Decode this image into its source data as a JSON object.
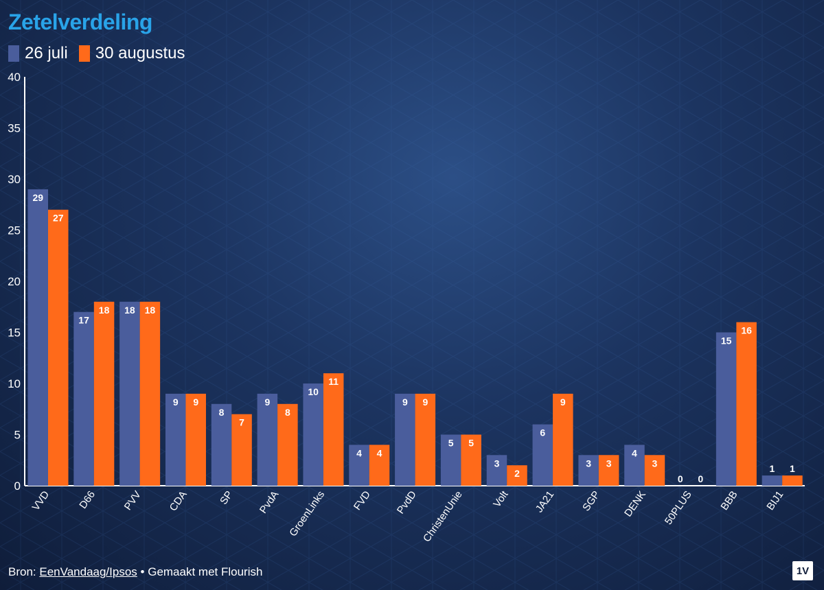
{
  "title": "Zetelverdeling",
  "colors": {
    "series1": "#4a5d9c",
    "series2": "#ff6a1a",
    "accent": "#29a3e8"
  },
  "chart_data": {
    "type": "bar",
    "title": "Zetelverdeling",
    "xlabel": "",
    "ylabel": "",
    "ylim": [
      0,
      40
    ],
    "yticks": [
      "0",
      "5",
      "10",
      "15",
      "20",
      "25",
      "30",
      "35",
      "40"
    ],
    "legend_position": "top-left",
    "grid": false,
    "categories": [
      "VVD",
      "D66",
      "PVV",
      "CDA",
      "SP",
      "PvdA",
      "GroenLinks",
      "FVD",
      "PvdD",
      "ChristenUnie",
      "Volt",
      "JA21",
      "SGP",
      "DENK",
      "50PLUS",
      "BBB",
      "BIJ1"
    ],
    "series": [
      {
        "name": "26 juli",
        "values": [
          29,
          17,
          18,
          9,
          8,
          9,
          10,
          4,
          9,
          5,
          3,
          6,
          3,
          4,
          0,
          15,
          1
        ]
      },
      {
        "name": "30 augustus",
        "values": [
          27,
          18,
          18,
          9,
          7,
          8,
          11,
          4,
          9,
          5,
          2,
          9,
          3,
          3,
          0,
          16,
          1
        ]
      }
    ]
  },
  "footer": {
    "source_prefix": "Bron:",
    "source_link": "EenVandaag/Ipsos",
    "separator": "•",
    "made_with": "Gemaakt met Flourish"
  },
  "logo_text": "1V"
}
